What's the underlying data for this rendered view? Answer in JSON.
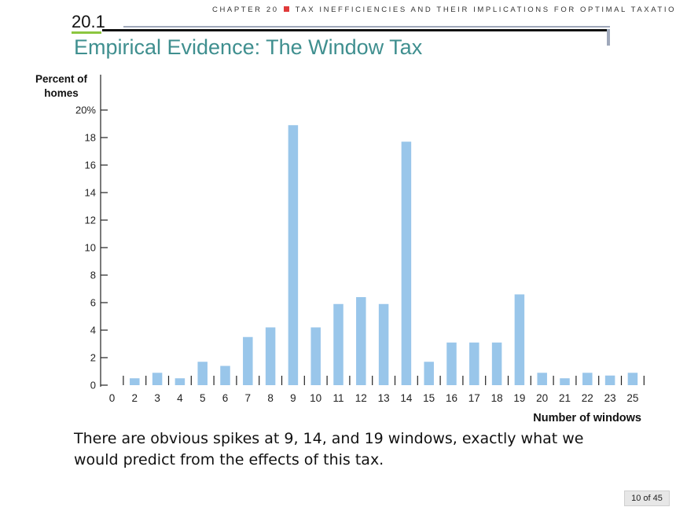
{
  "header": {
    "chapter": "CHAPTER 20",
    "chapter_title": "TAX INEFFICIENCIES AND THEIR IMPLICATIONS FOR OPTIMAL TAXATION",
    "section_number": "20.1",
    "title": "Empirical Evidence: The Window Tax"
  },
  "chart_data": {
    "type": "bar",
    "ylabel_line1": "Percent of",
    "ylabel_line2": "homes",
    "xlabel": "Number of windows",
    "ylim": [
      0,
      20
    ],
    "y_ticks": [
      "0",
      "2",
      "4",
      "6",
      "8",
      "10",
      "12",
      "14",
      "16",
      "18",
      "20%"
    ],
    "x_ticks": [
      "0",
      "2",
      "3",
      "4",
      "5",
      "6",
      "7",
      "8",
      "9",
      "10",
      "11",
      "12",
      "13",
      "14",
      "15",
      "16",
      "17",
      "18",
      "19",
      "20",
      "21",
      "22",
      "23",
      "25"
    ],
    "categories": [
      "2",
      "3",
      "4",
      "5",
      "6",
      "7",
      "8",
      "9",
      "10",
      "11",
      "12",
      "13",
      "14",
      "15",
      "16",
      "17",
      "18",
      "19",
      "20",
      "21",
      "22",
      "23",
      "25"
    ],
    "values": [
      0.5,
      0.9,
      0.5,
      1.7,
      1.4,
      3.5,
      4.2,
      18.9,
      4.2,
      5.9,
      6.4,
      5.9,
      17.7,
      1.7,
      3.1,
      3.1,
      3.1,
      6.6,
      0.9,
      0.5,
      0.9,
      0.7,
      0.9
    ],
    "bar_color": "#99c6ea",
    "grid": false
  },
  "caption": "There are obvious spikes at 9, 14, and 19 windows, exactly what we would predict from the effects of this tax.",
  "page_counter": "10 of 45"
}
